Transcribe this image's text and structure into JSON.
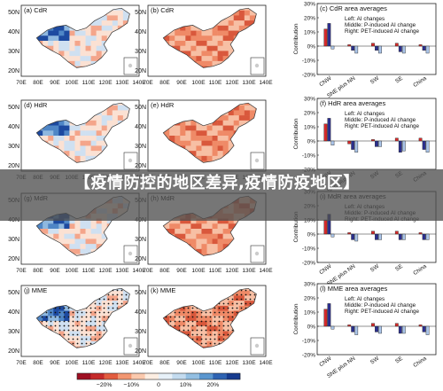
{
  "overlay": {
    "title": "【疫情防控的地区差异,疫情防疫地区】"
  },
  "maps": [
    {
      "label": "(a) CdR",
      "style": "blue"
    },
    {
      "label": "(b) CdR",
      "style": "red"
    },
    {
      "label": "(d) HdR",
      "style": "blue"
    },
    {
      "label": "(e) HdR",
      "style": "red"
    },
    {
      "label": "(g) MdR",
      "style": "blue"
    },
    {
      "label": "(h) MdR",
      "style": "red"
    },
    {
      "label": "(j) MME",
      "style": "blue"
    },
    {
      "label": "(k) MME",
      "style": "red"
    }
  ],
  "map_axes": {
    "lat_ticks": [
      "50N",
      "40N",
      "30N",
      "20N"
    ],
    "lon_ticks": [
      "70E",
      "80E",
      "90E",
      "100E",
      "110E",
      "120E",
      "130E",
      "140E"
    ]
  },
  "colors": {
    "all_changes": "#d62a2a",
    "p_induced": "#2b2f8f",
    "pet_induced": "#aac4e8",
    "dark_blue": "#1c2a8c",
    "dark_red": "#b21c1c"
  },
  "colorbar": {
    "tick_labels": [
      "−20%",
      "−10%",
      "0",
      "10%",
      "20%"
    ],
    "colors": [
      "#9e0f22",
      "#c52a2a",
      "#e25c3f",
      "#f29671",
      "#fbc9ad",
      "#fdeee2",
      "#e7f1f9",
      "#c3dbef",
      "#93bfe2",
      "#5a96cf",
      "#2e63b2",
      "#163b8e"
    ]
  },
  "chart_data": [
    {
      "type": "bar",
      "title": "(c) CdR area averages",
      "ylabel": "Contribution",
      "ylim": [
        -20,
        30
      ],
      "yticks": [
        "30%",
        "20%",
        "10%",
        "0%",
        "-10%",
        "-20%"
      ],
      "categories": [
        "CNW",
        "SNE plus NN",
        "SW",
        "SE",
        "China"
      ],
      "legend": [
        "Left: AI changes",
        "Middle: P-induced AI change",
        "Right: PET-induced AI change"
      ],
      "series": [
        {
          "values": [
            12,
            1,
            2,
            2,
            1
          ]
        },
        {
          "values": [
            16,
            -3,
            -3,
            -4,
            -3
          ]
        },
        {
          "values": [
            -2,
            -5,
            -5,
            -5,
            -5
          ]
        }
      ]
    },
    {
      "type": "bar",
      "title": "(f) HdR area averages",
      "ylabel": "Contribution",
      "ylim": [
        -20,
        30
      ],
      "yticks": [
        "30%",
        "20%",
        "10%",
        "0%",
        "-10%",
        "-20%"
      ],
      "categories": [
        "CNW",
        "SNE plus NN",
        "SW",
        "SE",
        "China"
      ],
      "legend": [
        "Left: AI changes",
        "Middle: P-induced AI change",
        "Right: PET-induced AI change"
      ],
      "series": [
        {
          "values": [
            12,
            -2,
            1,
            2,
            2
          ]
        },
        {
          "values": [
            16,
            -6,
            -4,
            -8,
            -6
          ]
        },
        {
          "values": [
            -3,
            -8,
            -4,
            -7,
            -8
          ]
        }
      ]
    },
    {
      "type": "bar",
      "title": "(i) MdR area averages",
      "ylabel": "Contribution",
      "ylim": [
        -20,
        30
      ],
      "yticks": [
        "30%",
        "20%",
        "10%",
        "0%",
        "-10%",
        "-20%"
      ],
      "categories": [
        "CNW",
        "SNE plus NN",
        "SW",
        "SE",
        "China"
      ],
      "legend": [
        "Left: AI changes",
        "Middle: P-induced AI change",
        "Right: PET-induced AI change"
      ],
      "series": [
        {
          "values": [
            10,
            1,
            2,
            2,
            1
          ]
        },
        {
          "values": [
            14,
            -4,
            -4,
            -4,
            -4
          ]
        },
        {
          "values": [
            -2,
            -5,
            -4,
            -4,
            -4
          ]
        }
      ]
    },
    {
      "type": "bar",
      "title": "(l) MME area averages",
      "ylabel": "Contribution",
      "ylim": [
        -20,
        30
      ],
      "yticks": [
        "30%",
        "20%",
        "10%",
        "0%",
        "-10%",
        "-20%"
      ],
      "categories": [
        "CNW",
        "SNE plus NN",
        "SW",
        "SE",
        "China"
      ],
      "legend": [
        "Left: AI changes",
        "Middle: P-induced AI change",
        "Right: PET-induced AI change"
      ],
      "series": [
        {
          "values": [
            12,
            1,
            2,
            2,
            1
          ]
        },
        {
          "values": [
            16,
            -4,
            -4,
            -5,
            -4
          ]
        },
        {
          "values": [
            -2,
            -6,
            -5,
            -5,
            -6
          ]
        }
      ]
    }
  ]
}
